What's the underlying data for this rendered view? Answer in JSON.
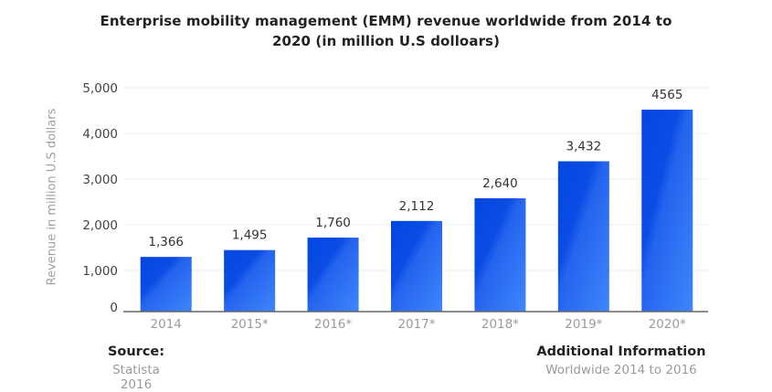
{
  "chart_data": {
    "type": "bar",
    "title": "Enterprise mobility management (EMM) revenue worldwide from 2014 to 2020 (in million U.S dolloars)",
    "title_lines": [
      "Enterprise mobility management (EMM) revenue worldwide from 2014 to",
      "2020 (in million U.S dolloars)"
    ],
    "xlabel": "",
    "ylabel": "Revenue in million U.S dollars",
    "categories": [
      "2014",
      "2015*",
      "2016*",
      "2017*",
      "2018*",
      "2019*",
      "2020*"
    ],
    "values": [
      1366,
      1495,
      1760,
      2112,
      2640,
      3432,
      4565
    ],
    "value_labels": [
      "1,366",
      "1,495",
      "1,760",
      "2,112",
      "2,640",
      "3,432",
      "4565"
    ],
    "ylim": [
      0,
      5000
    ],
    "yticks": [
      0,
      1000,
      2000,
      3000,
      4000,
      5000
    ],
    "ytick_labels": [
      "0",
      "1,000",
      "2,000",
      "3,000",
      "4,000",
      "5,000"
    ],
    "grid": true,
    "legend": "none",
    "bar_colors": {
      "top": "#0447e0",
      "bottom": "#3f86fb"
    }
  },
  "footer": {
    "source_heading": "Source:",
    "source_value": "Statista 2016",
    "info_heading": "Additional Information",
    "info_value": "Worldwide 2014 to 2016"
  }
}
